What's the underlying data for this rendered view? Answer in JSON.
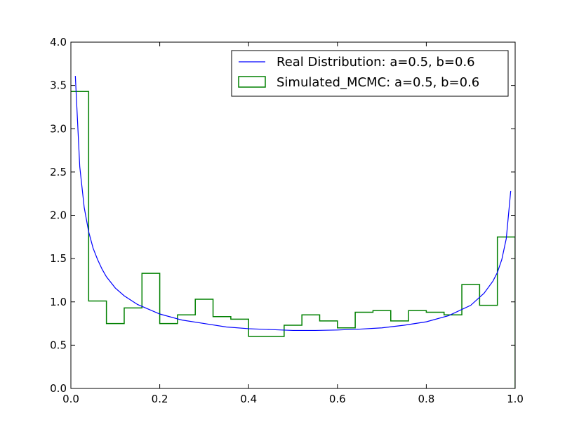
{
  "chart_data": {
    "type": "line",
    "title": "",
    "xlabel": "",
    "ylabel": "",
    "xlim": [
      0.0,
      1.0
    ],
    "ylim": [
      0.0,
      4.0
    ],
    "x_ticks": [
      "0.0",
      "0.2",
      "0.4",
      "0.6",
      "0.8",
      "1.0"
    ],
    "y_ticks": [
      "0.0",
      "0.5",
      "1.0",
      "1.5",
      "2.0",
      "2.5",
      "3.0",
      "3.5",
      "4.0"
    ],
    "grid": false,
    "legend_position": "top-right",
    "series": [
      {
        "name": "Real Distribution: a=0.5, b=0.6",
        "kind": "line",
        "color": "#0000ff",
        "x": [
          0.01,
          0.02,
          0.03,
          0.04,
          0.05,
          0.06,
          0.07,
          0.08,
          0.1,
          0.12,
          0.15,
          0.2,
          0.25,
          0.3,
          0.35,
          0.4,
          0.45,
          0.5,
          0.55,
          0.6,
          0.65,
          0.7,
          0.75,
          0.8,
          0.85,
          0.9,
          0.93,
          0.95,
          0.96,
          0.97,
          0.98,
          0.99
        ],
        "y": [
          3.61,
          2.56,
          2.09,
          1.81,
          1.62,
          1.49,
          1.38,
          1.29,
          1.16,
          1.07,
          0.97,
          0.86,
          0.79,
          0.75,
          0.71,
          0.69,
          0.68,
          0.67,
          0.67,
          0.675,
          0.685,
          0.7,
          0.73,
          0.77,
          0.84,
          0.96,
          1.1,
          1.24,
          1.34,
          1.49,
          1.73,
          2.28
        ]
      },
      {
        "name": "Simulated_MCMC: a=0.5, b=0.6",
        "kind": "step",
        "color": "#008000",
        "bin_edges": [
          0.0,
          0.04,
          0.08,
          0.12,
          0.16,
          0.2,
          0.24,
          0.28,
          0.32,
          0.36,
          0.4,
          0.44,
          0.48,
          0.52,
          0.56,
          0.6,
          0.64,
          0.68,
          0.72,
          0.76,
          0.8,
          0.84,
          0.88,
          0.92,
          0.96,
          1.0
        ],
        "values": [
          3.43,
          1.01,
          0.75,
          0.93,
          1.33,
          0.75,
          0.85,
          1.03,
          0.83,
          0.8,
          0.6,
          0.6,
          0.73,
          0.85,
          0.78,
          0.7,
          0.88,
          0.9,
          0.78,
          0.9,
          0.88,
          0.85,
          1.2,
          0.96,
          1.75
        ]
      }
    ]
  }
}
